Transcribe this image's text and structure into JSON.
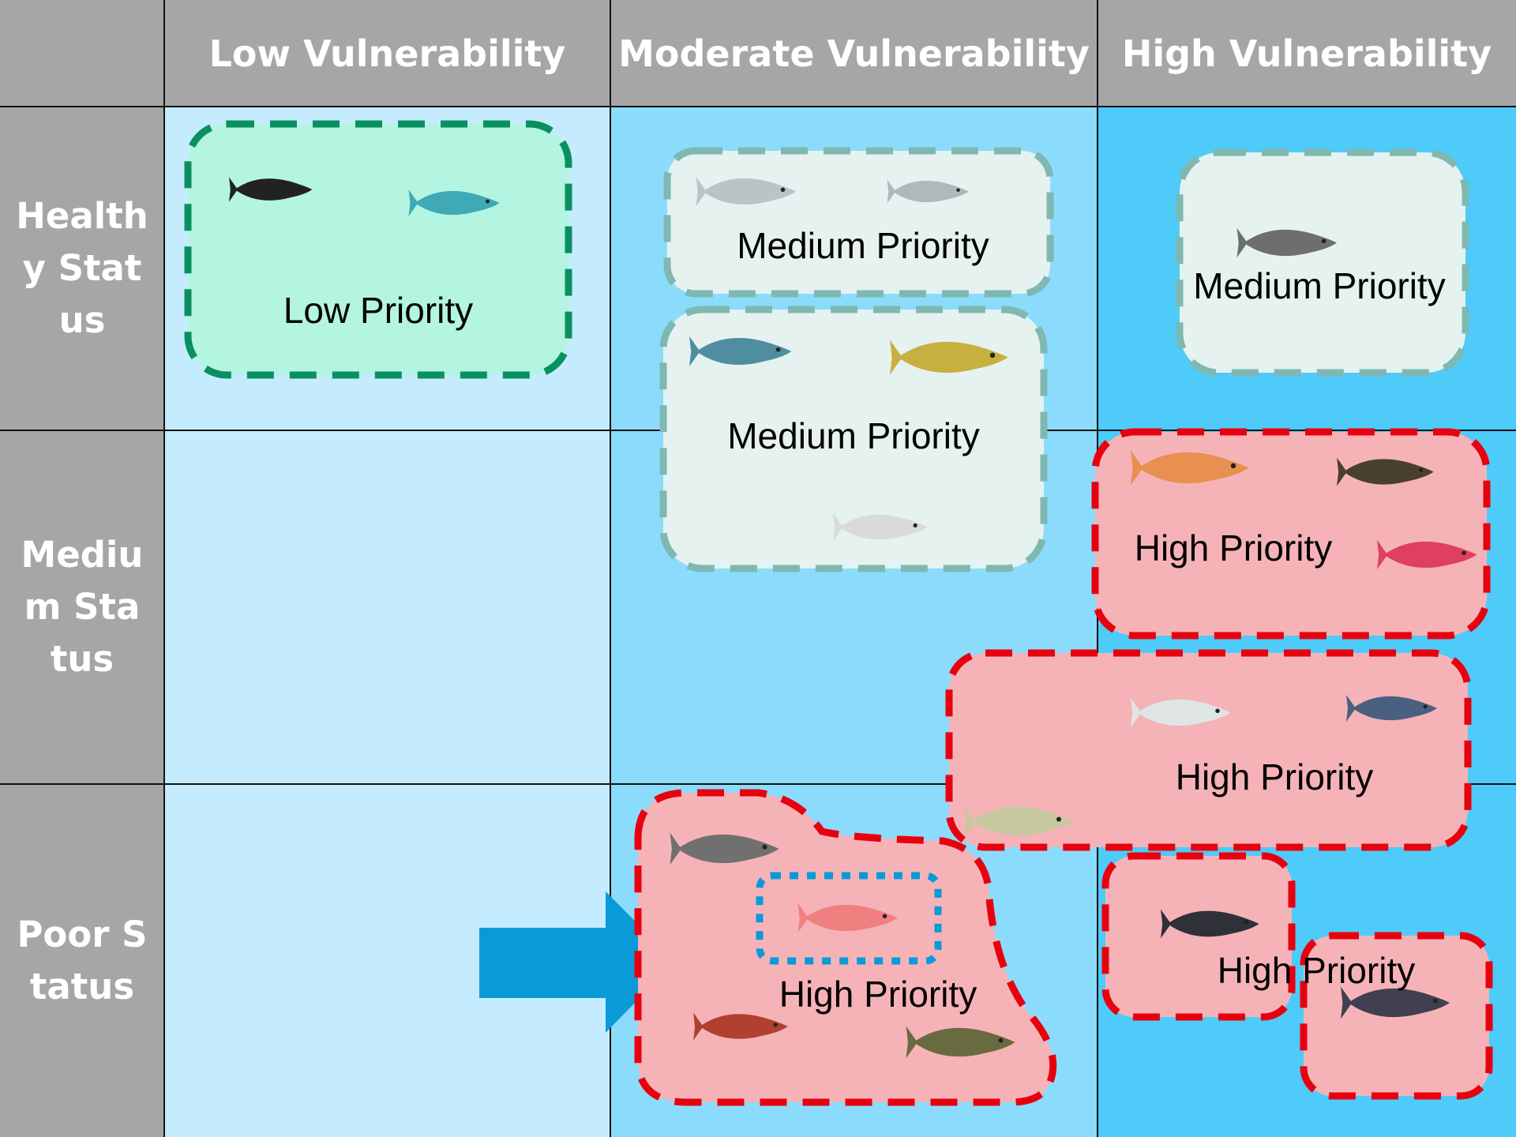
{
  "header": {
    "columns": [
      "Low Vulnerability",
      "Moderate Vulnerability",
      "High Vulnerability"
    ]
  },
  "rows": [
    "Healthy Status",
    "Medium Status",
    "Poor Status"
  ],
  "groups": [
    {
      "label": "Low Priority"
    },
    {
      "label": "Medium Priority"
    },
    {
      "label": "Medium Priority"
    },
    {
      "label": "Medium Priority"
    },
    {
      "label": "High Priority"
    },
    {
      "label": "High Priority"
    },
    {
      "label": "High Priority"
    },
    {
      "label": "High Priority"
    }
  ]
}
